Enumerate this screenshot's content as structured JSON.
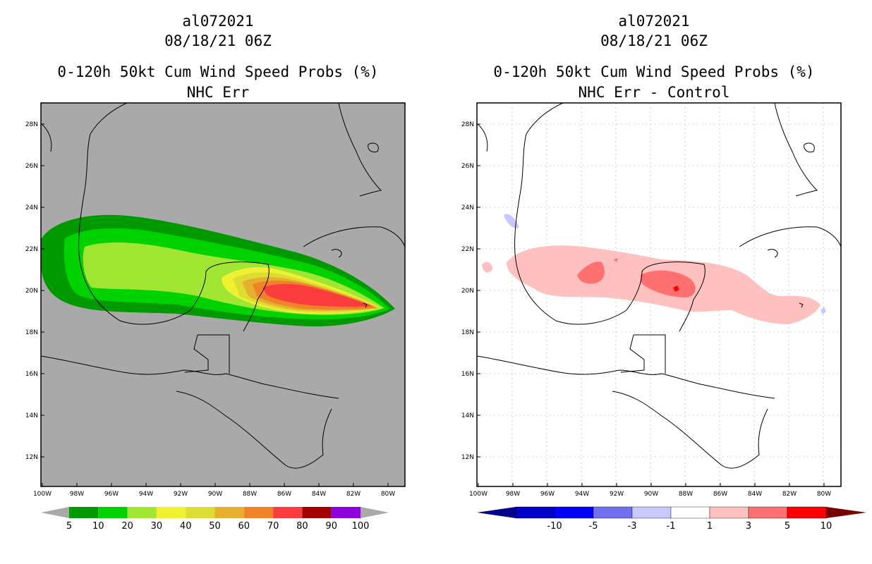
{
  "left_panel": {
    "title_line1": "al072021",
    "title_line2": "08/18/21 06Z",
    "title_line3": "0-120h 50kt Cum Wind Speed Probs (%)",
    "title_line4": "NHC Err",
    "colorbar_labels": [
      "5",
      "10",
      "20",
      "30",
      "40",
      "50",
      "60",
      "70",
      "80",
      "90",
      "100"
    ],
    "colorbar_colors": [
      "#009a00",
      "#00d200",
      "#a0e632",
      "#f0f032",
      "#dcdc32",
      "#e6af2d",
      "#f08228",
      "#fa3c3c",
      "#a00000",
      "#8c00dc"
    ],
    "background_color": "#a9a9a9"
  },
  "right_panel": {
    "title_line1": "al072021",
    "title_line2": "08/18/21 06Z",
    "title_line3": "0-120h 50kt Cum Wind Speed Probs (%)",
    "title_line4": "NHC Err - Control",
    "colorbar_labels": [
      "-10",
      "-5",
      "-3",
      "-1",
      "1",
      "3",
      "5",
      "10"
    ],
    "colorbar_colors": [
      "#0000c8",
      "#0000ff",
      "#7070f0",
      "#c8c8ff",
      "#ffffff",
      "#ffc0c0",
      "#ff7070",
      "#ff0000"
    ]
  },
  "axes": {
    "lat_labels": [
      "28N",
      "26N",
      "24N",
      "22N",
      "20N",
      "18N",
      "16N",
      "14N",
      "12N"
    ],
    "lon_labels": [
      "100W",
      "98W",
      "96W",
      "94W",
      "92W",
      "90W",
      "88W",
      "86W",
      "84W",
      "82W",
      "80W"
    ]
  }
}
